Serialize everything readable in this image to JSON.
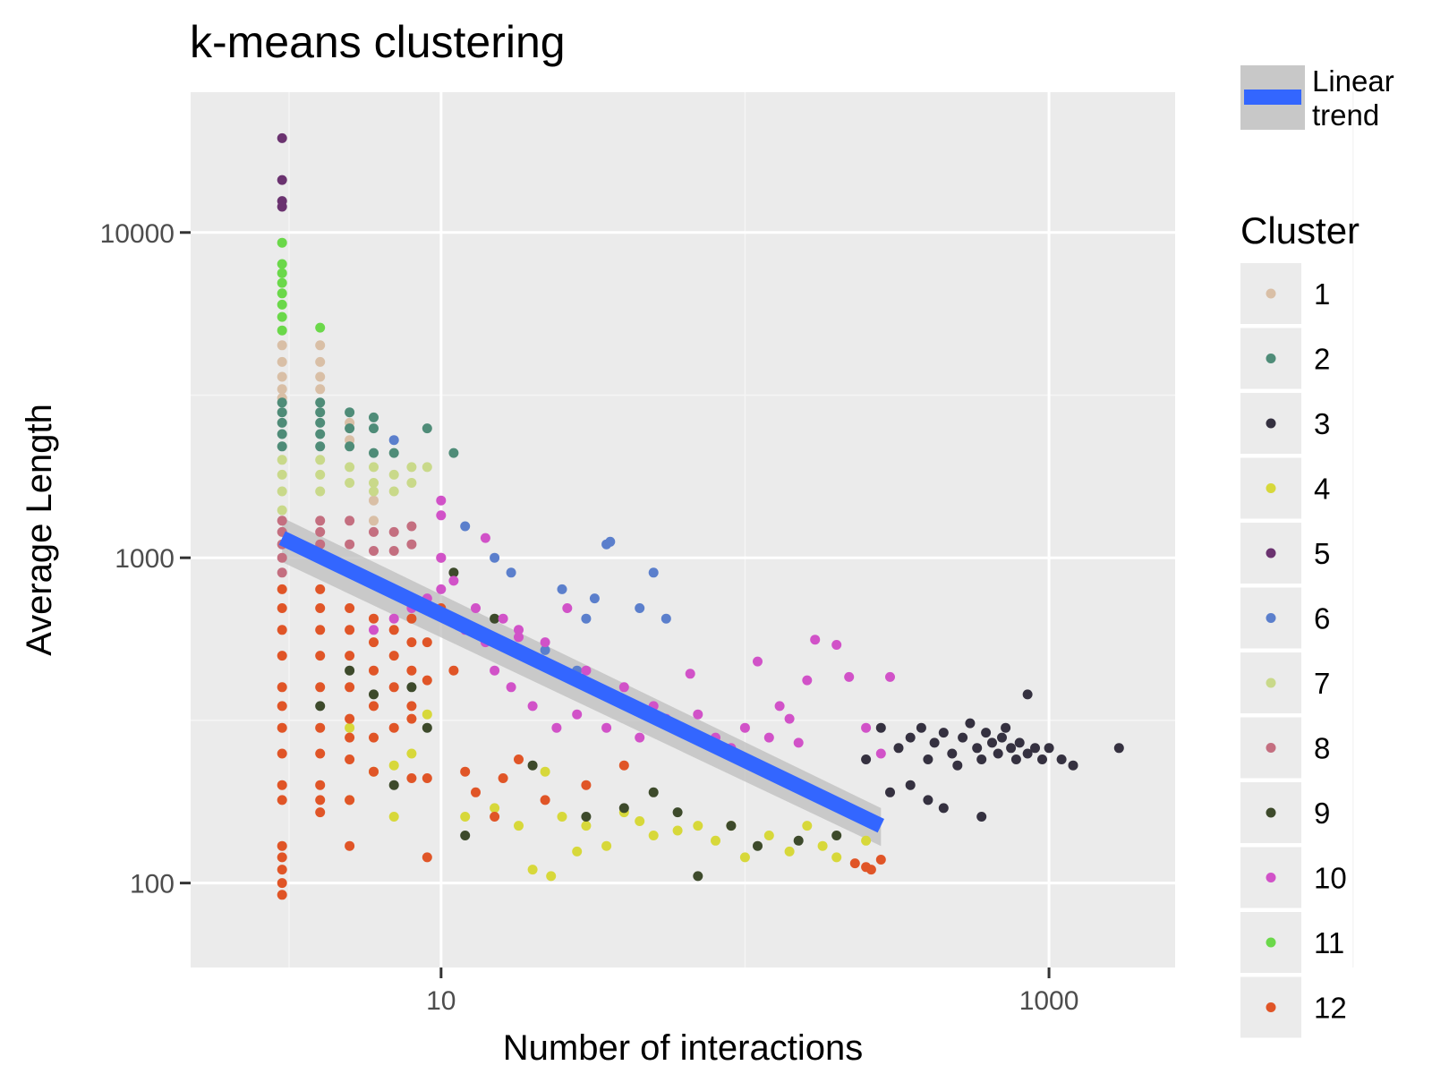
{
  "chart_data": {
    "type": "scatter",
    "title": "k-means clustering",
    "xlabel": "Number of interactions",
    "ylabel": "Average Length",
    "x_scale": "log10",
    "y_scale": "log10",
    "xlim": [
      1.5,
      2600
    ],
    "ylim": [
      55,
      27000
    ],
    "x_ticks": [
      10,
      1000
    ],
    "x_tick_labels": [
      "10",
      "1000"
    ],
    "y_ticks": [
      100,
      1000,
      10000
    ],
    "y_tick_labels": [
      "100",
      "1000",
      "10000"
    ],
    "grid": true,
    "background": "#ebebeb",
    "trend_legend_label": "Linear trend",
    "trend": {
      "color": "#3366ff",
      "band_color": "#bdbdbd",
      "start": [
        3,
        1150
      ],
      "end": [
        280,
        150
      ],
      "se_start": 180,
      "se_end": 20
    },
    "legend_title": "Cluster",
    "legend_position": "right",
    "series": [
      {
        "name": "1",
        "color": "#d9bfa6",
        "points": [
          [
            3,
            4500
          ],
          [
            3,
            4000
          ],
          [
            3,
            3600
          ],
          [
            3,
            3300
          ],
          [
            3,
            3100
          ],
          [
            4,
            4500
          ],
          [
            4,
            4000
          ],
          [
            4,
            3600
          ],
          [
            4,
            3300
          ],
          [
            5,
            2600
          ],
          [
            5,
            2300
          ],
          [
            6,
            1500
          ],
          [
            6,
            1300
          ]
        ]
      },
      {
        "name": "2",
        "color": "#4f8c78",
        "points": [
          [
            3,
            3000
          ],
          [
            3,
            2800
          ],
          [
            3,
            2600
          ],
          [
            3,
            2400
          ],
          [
            3,
            2200
          ],
          [
            4,
            3000
          ],
          [
            4,
            2800
          ],
          [
            4,
            2600
          ],
          [
            4,
            2400
          ],
          [
            4,
            2200
          ],
          [
            5,
            2800
          ],
          [
            5,
            2500
          ],
          [
            5,
            2200
          ],
          [
            6,
            2700
          ],
          [
            6,
            2500
          ],
          [
            6,
            2100
          ],
          [
            7,
            2100
          ],
          [
            9,
            2500
          ],
          [
            11,
            2100
          ]
        ]
      },
      {
        "name": "3",
        "color": "#353140",
        "points": [
          [
            320,
            260
          ],
          [
            350,
            280
          ],
          [
            380,
            300
          ],
          [
            400,
            240
          ],
          [
            420,
            270
          ],
          [
            450,
            290
          ],
          [
            480,
            250
          ],
          [
            500,
            230
          ],
          [
            520,
            280
          ],
          [
            550,
            310
          ],
          [
            580,
            260
          ],
          [
            600,
            240
          ],
          [
            620,
            290
          ],
          [
            650,
            270
          ],
          [
            680,
            250
          ],
          [
            700,
            280
          ],
          [
            720,
            300
          ],
          [
            750,
            260
          ],
          [
            780,
            240
          ],
          [
            800,
            270
          ],
          [
            850,
            250
          ],
          [
            900,
            260
          ],
          [
            950,
            240
          ],
          [
            1000,
            260
          ],
          [
            1100,
            240
          ],
          [
            1200,
            230
          ],
          [
            1700,
            260
          ],
          [
            850,
            380
          ],
          [
            350,
            200
          ],
          [
            400,
            180
          ],
          [
            450,
            170
          ],
          [
            600,
            160
          ],
          [
            300,
            190
          ],
          [
            250,
            240
          ],
          [
            280,
            300
          ]
        ]
      },
      {
        "name": "4",
        "color": "#d7d83a",
        "points": [
          [
            5,
            180
          ],
          [
            5,
            300
          ],
          [
            6,
            220
          ],
          [
            7,
            230
          ],
          [
            7,
            160
          ],
          [
            8,
            250
          ],
          [
            9,
            330
          ],
          [
            12,
            160
          ],
          [
            15,
            170
          ],
          [
            18,
            150
          ],
          [
            22,
            220
          ],
          [
            25,
            160
          ],
          [
            30,
            150
          ],
          [
            35,
            130
          ],
          [
            40,
            165
          ],
          [
            45,
            155
          ],
          [
            50,
            140
          ],
          [
            60,
            145
          ],
          [
            70,
            150
          ],
          [
            80,
            135
          ],
          [
            90,
            150
          ],
          [
            100,
            120
          ],
          [
            120,
            140
          ],
          [
            140,
            125
          ],
          [
            160,
            150
          ],
          [
            180,
            130
          ],
          [
            200,
            120
          ],
          [
            250,
            135
          ],
          [
            23,
            105
          ],
          [
            20,
            110
          ],
          [
            28,
            125
          ]
        ]
      },
      {
        "name": "5",
        "color": "#6b3370",
        "points": [
          [
            3,
            19500
          ],
          [
            3,
            14500
          ],
          [
            3,
            12500
          ],
          [
            3,
            12000
          ]
        ]
      },
      {
        "name": "6",
        "color": "#5b7fcc",
        "points": [
          [
            7,
            2300
          ],
          [
            12,
            1250
          ],
          [
            15,
            1000
          ],
          [
            17,
            900
          ],
          [
            25,
            800
          ],
          [
            30,
            650
          ],
          [
            35,
            1100
          ],
          [
            36,
            1120
          ],
          [
            50,
            900
          ],
          [
            55,
            650
          ],
          [
            22,
            520
          ],
          [
            28,
            450
          ],
          [
            32,
            750
          ],
          [
            45,
            700
          ]
        ]
      },
      {
        "name": "7",
        "color": "#c9d98a",
        "points": [
          [
            3,
            2000
          ],
          [
            3,
            1800
          ],
          [
            3,
            1600
          ],
          [
            3,
            1400
          ],
          [
            4,
            2000
          ],
          [
            4,
            1800
          ],
          [
            4,
            1600
          ],
          [
            5,
            1900
          ],
          [
            5,
            1700
          ],
          [
            6,
            1900
          ],
          [
            6,
            1700
          ],
          [
            6,
            1600
          ],
          [
            7,
            1800
          ],
          [
            7,
            1600
          ],
          [
            8,
            1900
          ],
          [
            9,
            1900
          ],
          [
            8,
            1700
          ]
        ]
      },
      {
        "name": "8",
        "color": "#c46f80",
        "points": [
          [
            3,
            1300
          ],
          [
            3,
            1200
          ],
          [
            3,
            1100
          ],
          [
            3,
            1000
          ],
          [
            3,
            900
          ],
          [
            4,
            1300
          ],
          [
            4,
            1200
          ],
          [
            4,
            1100
          ],
          [
            4,
            1000
          ],
          [
            5,
            1300
          ],
          [
            5,
            1100
          ],
          [
            6,
            1200
          ],
          [
            6,
            1050
          ],
          [
            7,
            1200
          ],
          [
            7,
            1050
          ],
          [
            8,
            1250
          ],
          [
            8,
            1100
          ],
          [
            10,
            1000
          ]
        ]
      },
      {
        "name": "9",
        "color": "#3d4a2b",
        "points": [
          [
            4,
            350
          ],
          [
            5,
            450
          ],
          [
            6,
            380
          ],
          [
            7,
            200
          ],
          [
            8,
            400
          ],
          [
            9,
            300
          ],
          [
            11,
            900
          ],
          [
            12,
            140
          ],
          [
            15,
            650
          ],
          [
            20,
            230
          ],
          [
            30,
            160
          ],
          [
            40,
            170
          ],
          [
            50,
            190
          ],
          [
            60,
            165
          ],
          [
            70,
            105
          ],
          [
            90,
            150
          ],
          [
            110,
            130
          ],
          [
            150,
            135
          ],
          [
            200,
            140
          ]
        ]
      },
      {
        "name": "10",
        "color": "#d152c8",
        "points": [
          [
            6,
            600
          ],
          [
            7,
            800
          ],
          [
            7,
            650
          ],
          [
            8,
            700
          ],
          [
            9,
            750
          ],
          [
            10,
            1000
          ],
          [
            10,
            800
          ],
          [
            10,
            1500
          ],
          [
            10,
            1350
          ],
          [
            11,
            850
          ],
          [
            12,
            600
          ],
          [
            13,
            700
          ],
          [
            14,
            550
          ],
          [
            15,
            450
          ],
          [
            16,
            650
          ],
          [
            17,
            400
          ],
          [
            18,
            600
          ],
          [
            20,
            350
          ],
          [
            22,
            550
          ],
          [
            24,
            300
          ],
          [
            26,
            700
          ],
          [
            28,
            330
          ],
          [
            30,
            450
          ],
          [
            35,
            300
          ],
          [
            40,
            400
          ],
          [
            45,
            280
          ],
          [
            50,
            350
          ],
          [
            55,
            320
          ],
          [
            60,
            300
          ],
          [
            70,
            330
          ],
          [
            80,
            280
          ],
          [
            90,
            260
          ],
          [
            100,
            300
          ],
          [
            120,
            280
          ],
          [
            140,
            320
          ],
          [
            150,
            270
          ],
          [
            160,
            420
          ],
          [
            170,
            560
          ],
          [
            200,
            540
          ],
          [
            220,
            430
          ],
          [
            250,
            300
          ],
          [
            280,
            250
          ],
          [
            300,
            430
          ],
          [
            130,
            350
          ],
          [
            110,
            480
          ],
          [
            66,
            440
          ],
          [
            18,
            570
          ],
          [
            14,
            1150
          ]
        ]
      },
      {
        "name": "11",
        "color": "#6bd84a",
        "points": [
          [
            3,
            9300
          ],
          [
            3,
            8000
          ],
          [
            3,
            7500
          ],
          [
            3,
            7000
          ],
          [
            3,
            6500
          ],
          [
            3,
            6000
          ],
          [
            3,
            5500
          ],
          [
            3,
            5000
          ],
          [
            4,
            5100
          ]
        ]
      },
      {
        "name": "12",
        "color": "#e05527",
        "points": [
          [
            3,
            800
          ],
          [
            3,
            700
          ],
          [
            3,
            600
          ],
          [
            3,
            500
          ],
          [
            3,
            400
          ],
          [
            3,
            350
          ],
          [
            3,
            300
          ],
          [
            3,
            250
          ],
          [
            3,
            200
          ],
          [
            3,
            180
          ],
          [
            3,
            130
          ],
          [
            3,
            120
          ],
          [
            3,
            110
          ],
          [
            3,
            100
          ],
          [
            3,
            92
          ],
          [
            4,
            800
          ],
          [
            4,
            700
          ],
          [
            4,
            600
          ],
          [
            4,
            500
          ],
          [
            4,
            400
          ],
          [
            4,
            300
          ],
          [
            4,
            250
          ],
          [
            4,
            200
          ],
          [
            4,
            180
          ],
          [
            4,
            165
          ],
          [
            5,
            700
          ],
          [
            5,
            600
          ],
          [
            5,
            500
          ],
          [
            5,
            400
          ],
          [
            5,
            320
          ],
          [
            5,
            280
          ],
          [
            5,
            240
          ],
          [
            5,
            180
          ],
          [
            5,
            130
          ],
          [
            6,
            650
          ],
          [
            6,
            550
          ],
          [
            6,
            450
          ],
          [
            6,
            350
          ],
          [
            6,
            280
          ],
          [
            6,
            220
          ],
          [
            7,
            600
          ],
          [
            7,
            500
          ],
          [
            7,
            400
          ],
          [
            7,
            300
          ],
          [
            8,
            650
          ],
          [
            8,
            550
          ],
          [
            8,
            450
          ],
          [
            8,
            350
          ],
          [
            8,
            320
          ],
          [
            8,
            210
          ],
          [
            9,
            550
          ],
          [
            9,
            420
          ],
          [
            9,
            210
          ],
          [
            9,
            120
          ],
          [
            10,
            700
          ],
          [
            11,
            450
          ],
          [
            12,
            220
          ],
          [
            13,
            190
          ],
          [
            15,
            160
          ],
          [
            16,
            210
          ],
          [
            18,
            240
          ],
          [
            22,
            180
          ],
          [
            30,
            200
          ],
          [
            40,
            230
          ],
          [
            230,
            115
          ],
          [
            250,
            112
          ],
          [
            260,
            110
          ],
          [
            280,
            118
          ]
        ]
      }
    ]
  }
}
